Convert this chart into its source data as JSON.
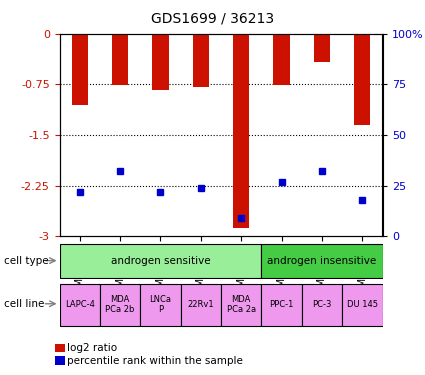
{
  "title": "GDS1699 / 36213",
  "samples": [
    "GSM91918",
    "GSM91919",
    "GSM91921",
    "GSM91922",
    "GSM91923",
    "GSM91916",
    "GSM91917",
    "GSM91920"
  ],
  "log2_ratio": [
    -1.05,
    -0.76,
    -0.83,
    -0.79,
    -2.88,
    -0.76,
    -0.42,
    -1.35
  ],
  "percentile_rank": [
    22,
    32,
    22,
    24,
    9,
    27,
    32,
    18
  ],
  "ylim_left": [
    -3,
    0
  ],
  "ylim_right": [
    0,
    100
  ],
  "yticks_left": [
    0,
    -0.75,
    -1.5,
    -2.25,
    -3
  ],
  "yticks_left_labels": [
    "0",
    "-0.75",
    "-1.5",
    "-2.25",
    "-3"
  ],
  "yticks_right": [
    0,
    25,
    50,
    75,
    100
  ],
  "yticks_right_labels": [
    "0",
    "25",
    "50",
    "75",
    "100%"
  ],
  "bar_color": "#cc1100",
  "dot_color": "#0000cc",
  "bar_width": 0.4,
  "cell_type_blocks": [
    {
      "label": "androgen sensitive",
      "start": 0,
      "end": 5,
      "color": "#99ee99"
    },
    {
      "label": "androgen insensitive",
      "start": 5,
      "end": 8,
      "color": "#44cc44"
    }
  ],
  "cell_line_labels": [
    "LAPC-4",
    "MDA\nPCa 2b",
    "LNCa\nP",
    "22Rv1",
    "MDA\nPCa 2a",
    "PPC-1",
    "PC-3",
    "DU 145"
  ],
  "cell_line_color": "#ee99ee",
  "legend_red_label": "log2 ratio",
  "legend_blue_label": "percentile rank within the sample",
  "left_axis_color": "#cc1100",
  "right_axis_color": "#0000cc"
}
